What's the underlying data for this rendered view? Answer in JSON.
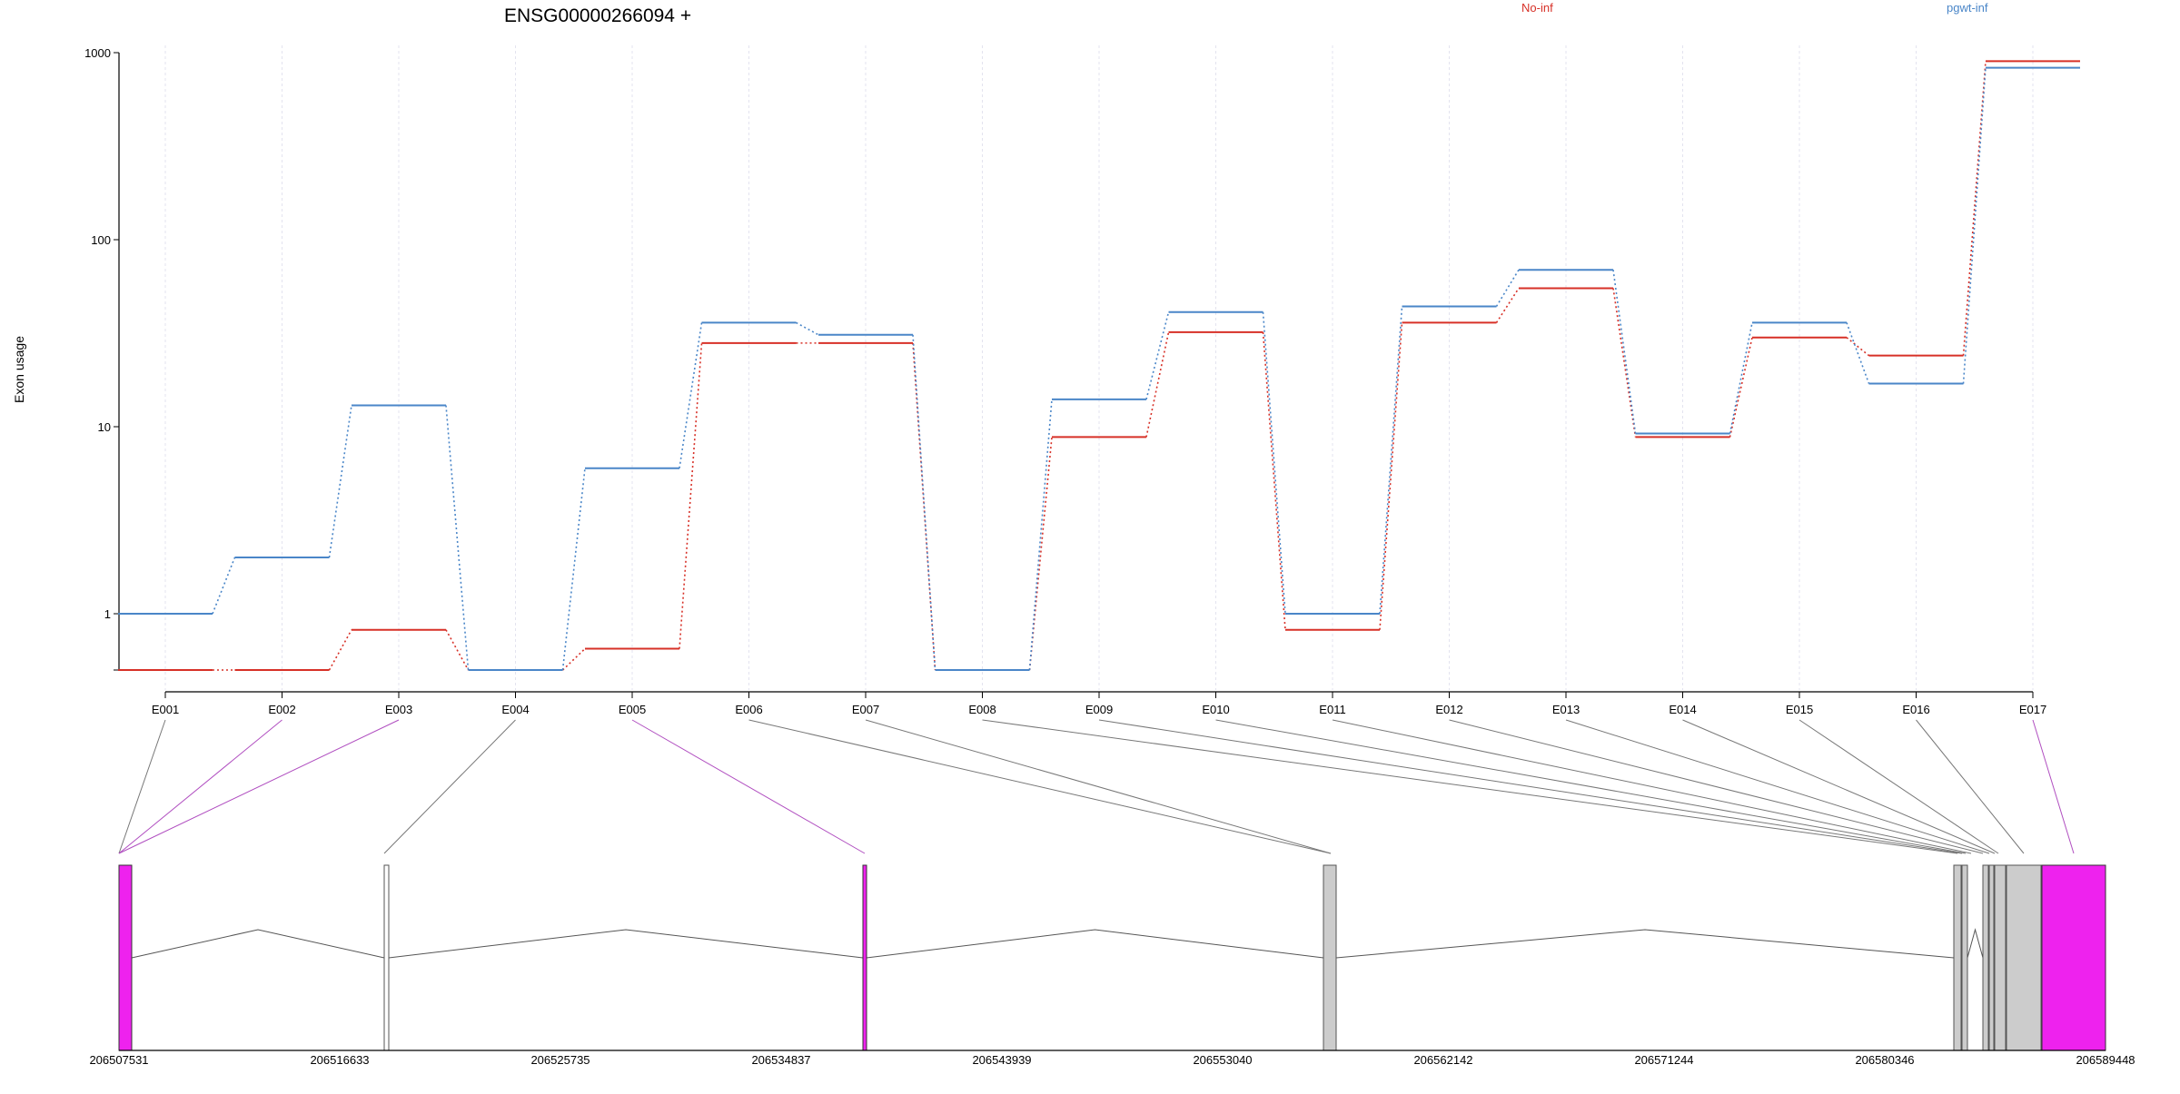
{
  "header": {
    "title": "ENSG00000266094 +",
    "legend": [
      {
        "label": "No-inf",
        "color": "#d73027"
      },
      {
        "label": "pgwt-inf",
        "color": "#4a86c8"
      }
    ]
  },
  "chart_data": {
    "type": "line",
    "ylabel": "Exon usage",
    "yscale": "log",
    "ylim": [
      0.5,
      1000
    ],
    "yticks": [
      "1",
      "10",
      "100",
      "1000"
    ],
    "categories": [
      "E001",
      "E002",
      "E003",
      "E004",
      "E005",
      "E006",
      "E007",
      "E008",
      "E009",
      "E010",
      "E011",
      "E012",
      "E013",
      "E014",
      "E015",
      "E016",
      "E017"
    ],
    "series": [
      {
        "name": "No-inf",
        "color": "#d73027",
        "values": [
          0.5,
          0.5,
          0.82,
          0.5,
          0.65,
          28,
          28,
          0.5,
          8.8,
          32,
          0.82,
          36,
          55,
          8.8,
          30,
          24,
          900
        ]
      },
      {
        "name": "pgwt-inf",
        "color": "#4a86c8",
        "values": [
          1.0,
          2.0,
          13,
          0.5,
          6.0,
          36,
          31,
          0.5,
          14,
          41,
          1.0,
          44,
          69,
          9.2,
          36,
          17,
          830
        ]
      }
    ],
    "gene_model": {
      "coordinates": [
        "206507531",
        "206516633",
        "206525735",
        "206534837",
        "206543939",
        "206553040",
        "206562142",
        "206571244",
        "206580346",
        "206589448"
      ]
    }
  }
}
